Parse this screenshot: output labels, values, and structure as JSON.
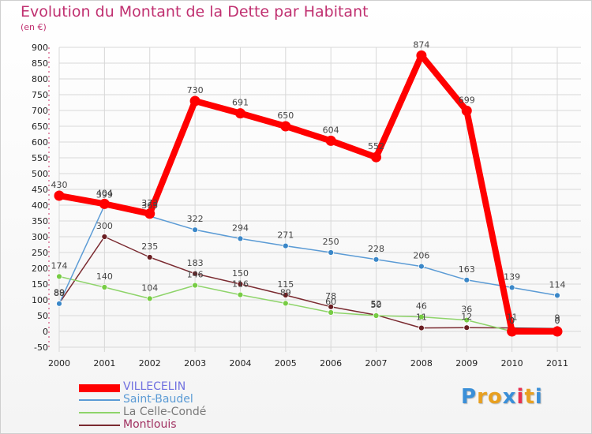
{
  "header": {
    "title": "Evolution du Montant de la Dette par Habitant",
    "subtitle": "(en €)"
  },
  "colors": {
    "title": "#c03070",
    "grid": "#d8d8d8",
    "axis_text": "#222222",
    "label_text": "#444444"
  },
  "chart_data": {
    "type": "line",
    "title": "Evolution du Montant de la Dette par Habitant",
    "subtitle": "(en €)",
    "x": [
      "2000",
      "2001",
      "2002",
      "2003",
      "2004",
      "2005",
      "2006",
      "2007",
      "2008",
      "2009",
      "2010",
      "2011"
    ],
    "ylim": [
      -50,
      900
    ],
    "yticks": [
      -50,
      0,
      50,
      100,
      150,
      200,
      250,
      300,
      350,
      400,
      450,
      500,
      550,
      600,
      650,
      700,
      750,
      800,
      850,
      900
    ],
    "grid": true,
    "legend_position": "bottom-left",
    "series": [
      {
        "name": "VILLECELIN",
        "color": "#ff0000",
        "marker": "#ff0000",
        "values": [
          430,
          404,
          373,
          730,
          691,
          650,
          604,
          552,
          874,
          699,
          0,
          0
        ],
        "labels": [
          "430",
          "404",
          "373",
          "730",
          "691",
          "650",
          "604",
          "552",
          "874",
          "699",
          "0",
          "0"
        ]
      },
      {
        "name": "Saint-Baudel",
        "color": "#5b9bd5",
        "marker": "#3a87c8",
        "values": [
          88,
          399,
          365,
          322,
          294,
          271,
          250,
          228,
          206,
          163,
          139,
          114
        ],
        "labels": [
          "88",
          "399",
          "365",
          "322",
          "294",
          "271",
          "250",
          "228",
          "206",
          "163",
          "139",
          "114"
        ]
      },
      {
        "name": "La Celle-Condé",
        "color": "#8ed46a",
        "marker": "#77cc44",
        "values": [
          174,
          140,
          104,
          146,
          116,
          89,
          60,
          50,
          46,
          36,
          0,
          0
        ],
        "labels": [
          "174",
          "140",
          "104",
          "146",
          "116",
          "89",
          "60",
          "50",
          "46",
          "36",
          "0",
          "0"
        ]
      },
      {
        "name": "Montlouis",
        "color": "#7a2a30",
        "marker": "#6a1e22",
        "values": [
          89,
          300,
          235,
          183,
          150,
          115,
          78,
          52,
          11,
          12,
          11,
          9
        ],
        "labels": [
          "89",
          "300",
          "235",
          "183",
          "150",
          "115",
          "78",
          "52",
          "11",
          "12",
          "11",
          "9"
        ]
      }
    ]
  },
  "logo": {
    "letters": [
      "P",
      "r",
      "o",
      "x",
      "i",
      "t",
      "i"
    ],
    "colors": [
      "#3a8fd8",
      "#e8a020",
      "#e8a020",
      "#3a8fd8",
      "#e83050",
      "#e8a020",
      "#3a8fd8"
    ]
  }
}
